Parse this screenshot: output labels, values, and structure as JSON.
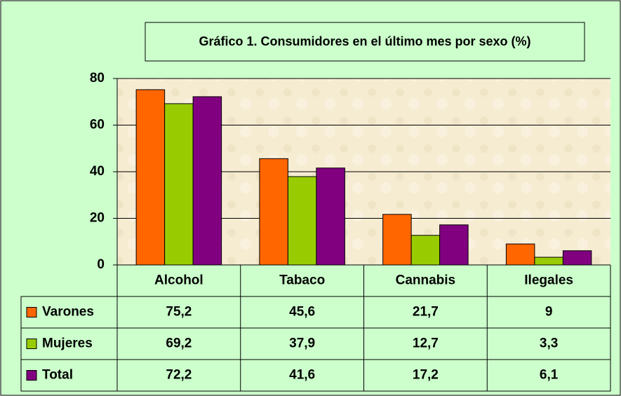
{
  "chart_data": {
    "type": "bar",
    "title": "Gráfico 1. Consumidores en el último mes por sexo (%)",
    "categories": [
      "Alcohol",
      "Tabaco",
      "Cannabis",
      "Ilegales"
    ],
    "series": [
      {
        "name": "Varones",
        "color": "#ff6600",
        "values": [
          75.2,
          45.6,
          21.7,
          9
        ],
        "value_labels": [
          "75,2",
          "45,6",
          "21,7",
          "9"
        ]
      },
      {
        "name": "Mujeres",
        "color": "#99cc00",
        "values": [
          69.2,
          37.9,
          12.7,
          3.3
        ],
        "value_labels": [
          "69,2",
          "37,9",
          "12,7",
          "3,3"
        ]
      },
      {
        "name": "Total",
        "color": "#800080",
        "values": [
          72.2,
          41.6,
          17.2,
          6.1
        ],
        "value_labels": [
          "72,2",
          "41,6",
          "17,2",
          "6,1"
        ]
      }
    ],
    "ylim": [
      0,
      80
    ],
    "yticks": [
      0,
      20,
      40,
      60,
      80
    ],
    "grid": true
  }
}
